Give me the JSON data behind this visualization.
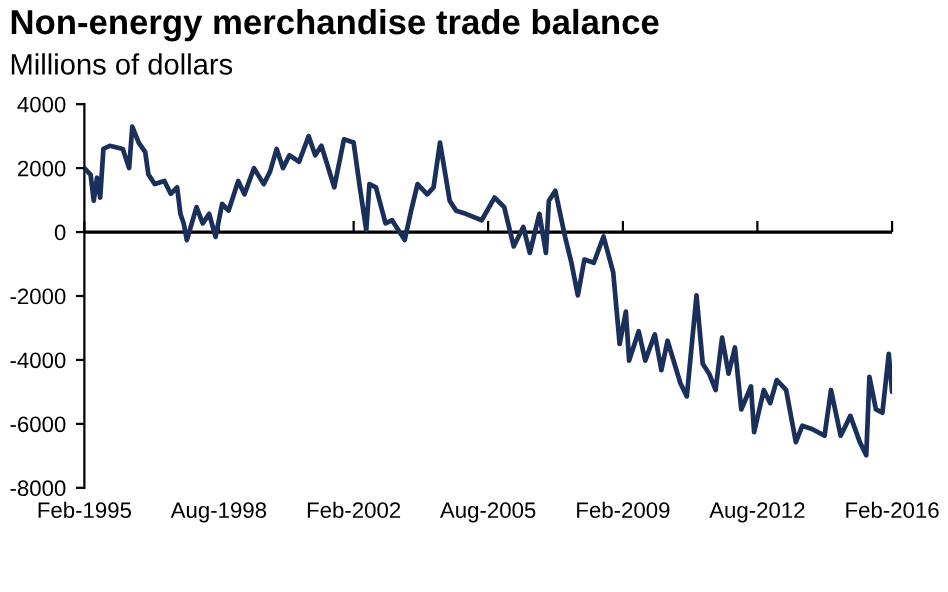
{
  "chart_data": {
    "type": "line",
    "title": "Non-energy merchandise trade balance",
    "subtitle": "Millions of dollars",
    "x": [
      "1995-02",
      "1995-04",
      "1995-05",
      "1995-06",
      "1995-07",
      "1995-08",
      "1995-10",
      "1996-02",
      "1996-04",
      "1996-05",
      "1996-07",
      "1996-09",
      "1996-10",
      "1996-12",
      "1997-03",
      "1997-05",
      "1997-07",
      "1997-08",
      "1997-09",
      "1997-10",
      "1998-01",
      "1998-03",
      "1998-05",
      "1998-07",
      "1998-09",
      "1998-11",
      "1999-02",
      "1999-04",
      "1999-07",
      "1999-10",
      "1999-12",
      "2000-02",
      "2000-04",
      "2000-06",
      "2000-09",
      "2000-12",
      "2001-02",
      "2001-04",
      "2001-08",
      "2001-11",
      "2002-02",
      "2002-04",
      "2002-06",
      "2002-07",
      "2002-09",
      "2002-12",
      "2003-02",
      "2003-06",
      "2003-08",
      "2003-10",
      "2004-01",
      "2004-03",
      "2004-05",
      "2004-07",
      "2004-08",
      "2004-10",
      "2005-01",
      "2005-06",
      "2005-10",
      "2006-01",
      "2006-04",
      "2006-07",
      "2006-09",
      "2006-12",
      "2007-02",
      "2007-03",
      "2007-05",
      "2007-08",
      "2007-10",
      "2007-12",
      "2008-02",
      "2008-05",
      "2008-08",
      "2008-11",
      "2009-01",
      "2009-03",
      "2009-04",
      "2009-07",
      "2009-09",
      "2009-12",
      "2010-02",
      "2010-04",
      "2010-08",
      "2010-10",
      "2011-01",
      "2011-03",
      "2011-05",
      "2011-07",
      "2011-09",
      "2011-11",
      "2012-01",
      "2012-03",
      "2012-06",
      "2012-07",
      "2012-10",
      "2012-12",
      "2013-02",
      "2013-05",
      "2013-08",
      "2013-10",
      "2014-01",
      "2014-05",
      "2014-07",
      "2014-10",
      "2015-01",
      "2015-04",
      "2015-06",
      "2015-07",
      "2015-09",
      "2015-11",
      "2016-01",
      "2016-02"
    ],
    "series": [
      {
        "color": "#1b2f5b",
        "values": [
          2000,
          1800,
          980,
          1700,
          1080,
          2600,
          2700,
          2600,
          2000,
          3300,
          2800,
          2500,
          1800,
          1500,
          1600,
          1200,
          1400,
          570,
          270,
          -250,
          780,
          270,
          570,
          -150,
          880,
          670,
          1600,
          1180,
          2000,
          1500,
          1900,
          2600,
          2000,
          2400,
          2200,
          3000,
          2400,
          2700,
          1400,
          2900,
          2800,
          1400,
          60,
          1500,
          1400,
          270,
          370,
          -250,
          670,
          1500,
          1180,
          1400,
          2800,
          1600,
          980,
          670,
          570,
          370,
          1080,
          780,
          -450,
          160,
          -650,
          570,
          -650,
          980,
          1290,
          -140,
          -960,
          -1980,
          -860,
          -960,
          -140,
          -1260,
          -3500,
          -2490,
          -4020,
          -3100,
          -4020,
          -3200,
          -4320,
          -3400,
          -4730,
          -5140,
          -1980,
          -4120,
          -4430,
          -4940,
          -3300,
          -4430,
          -3610,
          -5550,
          -4830,
          -6260,
          -4940,
          -5350,
          -4630,
          -4940,
          -6570,
          -6060,
          -6160,
          -6370,
          -4940,
          -6370,
          -5750,
          -6570,
          -6980,
          -4530,
          -5550,
          -5650,
          -3810,
          -5000
        ]
      }
    ],
    "xlim": [
      "1995-02",
      "2016-02"
    ],
    "xticks": [
      {
        "value": "1995-02",
        "label": "Feb-1995"
      },
      {
        "value": "1998-08",
        "label": "Aug-1998"
      },
      {
        "value": "2002-02",
        "label": "Feb-2002"
      },
      {
        "value": "2005-08",
        "label": "Aug-2005"
      },
      {
        "value": "2009-02",
        "label": "Feb-2009"
      },
      {
        "value": "2012-08",
        "label": "Aug-2012"
      },
      {
        "value": "2016-02",
        "label": "Feb-2016"
      }
    ],
    "ylim": [
      -8000,
      4000
    ],
    "yticks": [
      -8000,
      -6000,
      -4000,
      -2000,
      0,
      2000,
      4000
    ],
    "ref_lines": [
      {
        "axis": "y",
        "value": 0,
        "color": "#000000"
      }
    ],
    "marker": "none",
    "line_style": "solid"
  }
}
